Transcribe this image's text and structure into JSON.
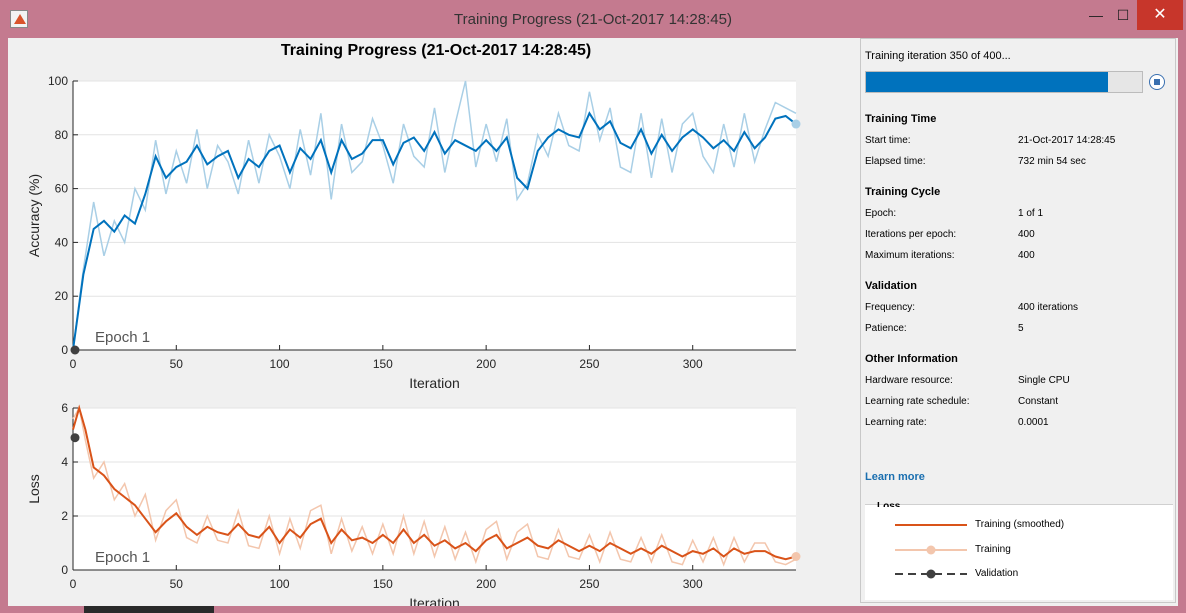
{
  "window": {
    "title": "Training Progress (21-Oct-2017 14:28:45)",
    "controls": {
      "minimize": "—",
      "maximize": "☐",
      "close": "✕"
    }
  },
  "plot": {
    "title": "Training Progress (21-Oct-2017 14:28:45)"
  },
  "colors": {
    "accuracy": "#0072bd",
    "accuracy_raw": "#a9cfe6",
    "loss": "#d95319",
    "loss_raw": "#f3c6ad",
    "validation": "#404040"
  },
  "chart_data": [
    {
      "type": "line",
      "title": "",
      "xlabel": "Iteration",
      "ylabel": "Accuracy (%)",
      "xlim": [
        0,
        350
      ],
      "ylim": [
        0,
        100
      ],
      "xticks": [
        0,
        50,
        100,
        150,
        200,
        250,
        300
      ],
      "yticks": [
        0,
        20,
        40,
        60,
        80,
        100
      ],
      "annotation": "Epoch 1",
      "grid": true,
      "series": [
        {
          "name": "Training (smoothed)",
          "x": [
            0,
            5,
            10,
            15,
            20,
            25,
            30,
            35,
            40,
            45,
            50,
            55,
            60,
            65,
            70,
            75,
            80,
            85,
            90,
            95,
            100,
            105,
            110,
            115,
            120,
            125,
            130,
            135,
            140,
            145,
            150,
            155,
            160,
            165,
            170,
            175,
            180,
            185,
            190,
            195,
            200,
            205,
            210,
            215,
            220,
            225,
            230,
            235,
            240,
            245,
            250,
            255,
            260,
            265,
            270,
            275,
            280,
            285,
            290,
            295,
            300,
            305,
            310,
            315,
            320,
            325,
            330,
            335,
            340,
            345,
            350
          ],
          "y": [
            0,
            28,
            45,
            48,
            44,
            50,
            47,
            58,
            72,
            64,
            68,
            70,
            76,
            69,
            72,
            74,
            64,
            71,
            68,
            74,
            76,
            66,
            75,
            71,
            78,
            66,
            78,
            71,
            73,
            78,
            78,
            69,
            77,
            79,
            74,
            81,
            73,
            78,
            76,
            74,
            78,
            74,
            79,
            64,
            60,
            74,
            79,
            82,
            80,
            79,
            88,
            82,
            85,
            77,
            75,
            82,
            73,
            80,
            74,
            79,
            82,
            79,
            75,
            78,
            74,
            81,
            75,
            79,
            86,
            87,
            84
          ]
        },
        {
          "name": "Training",
          "x": [
            0,
            5,
            10,
            15,
            20,
            25,
            30,
            35,
            40,
            45,
            50,
            55,
            60,
            65,
            70,
            75,
            80,
            85,
            90,
            95,
            100,
            105,
            110,
            115,
            120,
            125,
            130,
            135,
            140,
            145,
            150,
            155,
            160,
            165,
            170,
            175,
            180,
            185,
            190,
            195,
            200,
            205,
            210,
            215,
            220,
            225,
            230,
            235,
            240,
            245,
            250,
            255,
            260,
            265,
            270,
            275,
            280,
            285,
            290,
            295,
            300,
            305,
            310,
            315,
            320,
            325,
            330,
            335,
            340,
            345,
            350
          ],
          "y": [
            0,
            30,
            55,
            35,
            48,
            40,
            60,
            52,
            78,
            58,
            74,
            62,
            82,
            60,
            76,
            70,
            58,
            78,
            62,
            80,
            72,
            60,
            82,
            65,
            88,
            56,
            84,
            66,
            70,
            86,
            76,
            62,
            84,
            72,
            68,
            90,
            66,
            84,
            100,
            68,
            84,
            70,
            86,
            56,
            62,
            80,
            72,
            88,
            76,
            74,
            96,
            78,
            90,
            68,
            66,
            88,
            64,
            86,
            66,
            84,
            88,
            72,
            66,
            84,
            68,
            88,
            70,
            82,
            92,
            90,
            88
          ]
        }
      ],
      "validation": {
        "x": [
          0
        ],
        "y": [
          0
        ]
      }
    },
    {
      "type": "line",
      "title": "",
      "xlabel": "Iteration",
      "ylabel": "Loss",
      "xlim": [
        0,
        350
      ],
      "ylim": [
        0,
        6
      ],
      "xticks": [
        0,
        50,
        100,
        150,
        200,
        250,
        300
      ],
      "yticks": [
        0,
        2,
        4,
        6
      ],
      "annotation": "Epoch 1",
      "grid": true,
      "series": [
        {
          "name": "Training (smoothed)",
          "x": [
            0,
            3,
            6,
            10,
            15,
            20,
            25,
            30,
            35,
            40,
            45,
            50,
            55,
            60,
            65,
            70,
            75,
            80,
            85,
            90,
            95,
            100,
            105,
            110,
            115,
            120,
            125,
            130,
            135,
            140,
            145,
            150,
            155,
            160,
            165,
            170,
            175,
            180,
            185,
            190,
            195,
            200,
            205,
            210,
            215,
            220,
            225,
            230,
            235,
            240,
            245,
            250,
            255,
            260,
            265,
            270,
            275,
            280,
            285,
            290,
            295,
            300,
            305,
            310,
            315,
            320,
            325,
            330,
            335,
            340,
            345,
            350
          ],
          "y": [
            5.2,
            6.0,
            5.2,
            3.8,
            3.5,
            3.0,
            2.7,
            2.4,
            1.9,
            1.4,
            1.8,
            2.1,
            1.6,
            1.3,
            1.6,
            1.4,
            1.3,
            1.7,
            1.3,
            1.2,
            1.6,
            1.0,
            1.5,
            1.2,
            1.7,
            1.9,
            1.0,
            1.5,
            1.1,
            1.2,
            1.0,
            1.3,
            1.0,
            1.5,
            1.0,
            1.3,
            0.9,
            1.1,
            0.8,
            1.0,
            0.7,
            1.1,
            1.3,
            0.8,
            1.0,
            1.2,
            0.9,
            0.8,
            1.1,
            0.9,
            0.7,
            0.9,
            0.7,
            1.0,
            0.8,
            0.6,
            0.8,
            0.6,
            0.9,
            0.7,
            0.5,
            0.7,
            0.6,
            0.8,
            0.5,
            0.8,
            0.6,
            0.7,
            0.7,
            0.5,
            0.4,
            0.5
          ]
        },
        {
          "name": "Training",
          "x": [
            0,
            3,
            6,
            10,
            15,
            20,
            25,
            30,
            35,
            40,
            45,
            50,
            55,
            60,
            65,
            70,
            75,
            80,
            85,
            90,
            95,
            100,
            105,
            110,
            115,
            120,
            125,
            130,
            135,
            140,
            145,
            150,
            155,
            160,
            165,
            170,
            175,
            180,
            185,
            190,
            195,
            200,
            205,
            210,
            215,
            220,
            225,
            230,
            235,
            240,
            245,
            250,
            255,
            260,
            265,
            270,
            275,
            280,
            285,
            290,
            295,
            300,
            305,
            310,
            315,
            320,
            325,
            330,
            335,
            340,
            345,
            350
          ],
          "y": [
            5.6,
            6.0,
            4.8,
            3.4,
            4.0,
            2.6,
            3.2,
            2.0,
            2.8,
            1.1,
            2.2,
            2.6,
            1.2,
            1.0,
            2.0,
            1.1,
            1.0,
            2.2,
            0.9,
            0.8,
            2.0,
            0.6,
            1.9,
            0.8,
            2.2,
            2.4,
            0.6,
            1.9,
            0.7,
            1.6,
            0.6,
            1.7,
            0.6,
            2.0,
            0.6,
            1.8,
            0.5,
            1.6,
            0.4,
            1.4,
            0.3,
            1.5,
            1.8,
            0.4,
            1.4,
            1.7,
            0.5,
            0.4,
            1.5,
            0.5,
            0.4,
            1.3,
            0.3,
            1.4,
            0.4,
            0.3,
            1.2,
            0.3,
            1.3,
            0.3,
            0.2,
            1.1,
            0.3,
            1.2,
            0.2,
            1.2,
            0.3,
            1.0,
            1.0,
            0.3,
            0.2,
            0.4
          ]
        }
      ],
      "validation": {
        "x": [
          0
        ],
        "y": [
          4.9
        ]
      }
    }
  ],
  "side_panel": {
    "status": "Training iteration 350 of 400...",
    "progress": 0.875,
    "sections": {
      "training_time": {
        "header": "Training Time",
        "rows": [
          {
            "label": "Start time:",
            "value": "21-Oct-2017 14:28:45"
          },
          {
            "label": "Elapsed time:",
            "value": "732 min 54 sec"
          }
        ]
      },
      "training_cycle": {
        "header": "Training Cycle",
        "rows": [
          {
            "label": "Epoch:",
            "value": "1 of 1"
          },
          {
            "label": "Iterations per epoch:",
            "value": "400"
          },
          {
            "label": "Maximum iterations:",
            "value": "400"
          }
        ]
      },
      "validation": {
        "header": "Validation",
        "rows": [
          {
            "label": "Frequency:",
            "value": "400 iterations"
          },
          {
            "label": "Patience:",
            "value": "5"
          }
        ]
      },
      "other": {
        "header": "Other Information",
        "rows": [
          {
            "label": "Hardware resource:",
            "value": "Single CPU"
          },
          {
            "label": "Learning rate schedule:",
            "value": "Constant"
          },
          {
            "label": "Learning rate:",
            "value": "0.0001"
          }
        ]
      }
    },
    "learn_more": "Learn more",
    "legend": {
      "header": "Loss",
      "items": [
        {
          "label": "Training (smoothed)",
          "style": "smoothed"
        },
        {
          "label": "Training",
          "style": "raw"
        },
        {
          "label": "Validation",
          "style": "validation"
        }
      ]
    }
  }
}
